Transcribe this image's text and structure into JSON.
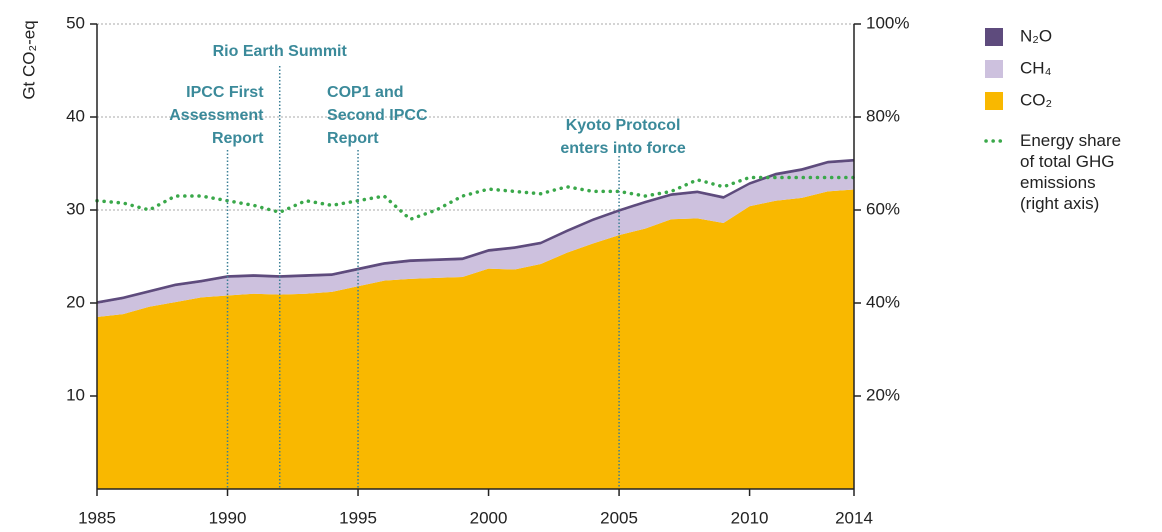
{
  "chart_data": {
    "type": "stacked-area",
    "y_label": "Gt CO₂-eq",
    "x": [
      1985,
      1986,
      1987,
      1988,
      1989,
      1990,
      1991,
      1992,
      1993,
      1994,
      1995,
      1996,
      1997,
      1998,
      1999,
      2000,
      2001,
      2002,
      2003,
      2004,
      2005,
      2006,
      2007,
      2008,
      2009,
      2010,
      2011,
      2012,
      2013,
      2014
    ],
    "xlim": [
      1985,
      2014
    ],
    "xticks": [
      1985,
      1990,
      1995,
      2000,
      2005,
      2010,
      2014
    ],
    "ylim": [
      0,
      50
    ],
    "yticks": [
      10,
      20,
      30,
      40,
      50
    ],
    "y2lim": [
      0,
      100
    ],
    "y2ticks": [
      {
        "value": 20,
        "label": "20%"
      },
      {
        "value": 40,
        "label": "40%"
      },
      {
        "value": 60,
        "label": "60%"
      },
      {
        "value": 80,
        "label": "80%"
      },
      {
        "value": 100,
        "label": "100%"
      }
    ],
    "grid": true,
    "legend": "right",
    "series": [
      {
        "name": "CO₂",
        "color": "#f9b800",
        "values": [
          18.5,
          18.8,
          19.6,
          20.1,
          20.6,
          20.8,
          21.0,
          20.9,
          21.0,
          21.2,
          21.8,
          22.4,
          22.6,
          22.7,
          22.8,
          23.7,
          23.6,
          24.2,
          25.4,
          26.4,
          27.3,
          28.0,
          29.0,
          29.1,
          28.6,
          30.4,
          31.0,
          31.3,
          32.0,
          32.2
        ]
      },
      {
        "name": "CH₄",
        "color": "#cdc1de",
        "values": [
          1.4,
          1.6,
          1.5,
          1.7,
          1.6,
          1.9,
          1.8,
          1.8,
          1.8,
          1.7,
          1.7,
          1.7,
          1.8,
          1.8,
          1.8,
          1.8,
          2.2,
          2.1,
          2.2,
          2.4,
          2.5,
          2.7,
          2.5,
          2.7,
          2.6,
          2.3,
          2.7,
          2.9,
          3.0,
          3.0
        ]
      },
      {
        "name": "N₂O",
        "color": "#5e4b7d",
        "values": [
          0.3,
          0.3,
          0.3,
          0.3,
          0.3,
          0.3,
          0.3,
          0.3,
          0.3,
          0.3,
          0.3,
          0.3,
          0.3,
          0.3,
          0.3,
          0.3,
          0.3,
          0.3,
          0.3,
          0.3,
          0.3,
          0.3,
          0.3,
          0.3,
          0.3,
          0.3,
          0.3,
          0.3,
          0.3,
          0.3
        ]
      },
      {
        "name": "Energy share of total GHG emissions (right axis)",
        "color": "#3aa84a",
        "axis": "y2",
        "style": "dotted",
        "values": [
          62,
          61.5,
          60,
          63,
          63,
          62,
          61,
          59.5,
          62,
          61,
          62,
          63,
          58,
          60,
          63,
          64.5,
          64,
          63.5,
          65,
          64,
          64,
          63,
          64,
          66.5,
          65,
          67,
          67,
          67,
          67,
          67
        ]
      }
    ],
    "annotations": [
      {
        "year": 1990,
        "lines": [
          "IPCC First",
          "Assessment",
          "Report"
        ]
      },
      {
        "year": 1992,
        "lines": [
          "Rio Earth Summit"
        ]
      },
      {
        "year": 1995,
        "lines": [
          "COP1 and",
          "Second IPCC",
          "Report"
        ]
      },
      {
        "year": 2005,
        "lines": [
          "Kyoto Protocol",
          "enters into force"
        ]
      }
    ]
  }
}
